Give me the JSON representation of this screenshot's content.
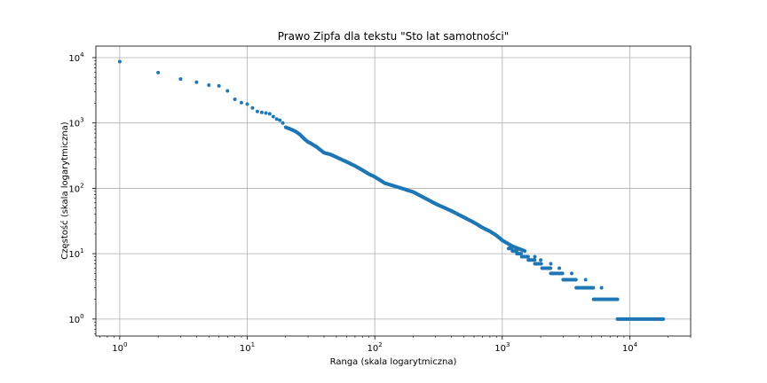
{
  "chart_data": {
    "type": "scatter",
    "title": "Prawo Zipfa dla tekstu \"Sto lat samotności\"",
    "xlabel": "Ranga (skala logarytmiczna)",
    "ylabel": "Częstość (skala logarytmicznа)",
    "xscale": "log",
    "yscale": "log",
    "xlim": [
      0.65,
      30000
    ],
    "ylim": [
      0.55,
      15000
    ],
    "grid": true,
    "marker_color": "#1f77b4",
    "x_ticks": [
      {
        "value": 1,
        "base": "10",
        "exp": "0"
      },
      {
        "value": 10,
        "base": "10",
        "exp": "1"
      },
      {
        "value": 100,
        "base": "10",
        "exp": "2"
      },
      {
        "value": 1000,
        "base": "10",
        "exp": "3"
      },
      {
        "value": 10000,
        "base": "10",
        "exp": "4"
      }
    ],
    "y_ticks": [
      {
        "value": 1,
        "base": "10",
        "exp": "0"
      },
      {
        "value": 10,
        "base": "10",
        "exp": "1"
      },
      {
        "value": 100,
        "base": "10",
        "exp": "2"
      },
      {
        "value": 1000,
        "base": "10",
        "exp": "3"
      },
      {
        "value": 10000,
        "base": "10",
        "exp": "4"
      }
    ],
    "points": [
      [
        1,
        8700
      ],
      [
        2,
        5900
      ],
      [
        3,
        4700
      ],
      [
        4,
        4200
      ],
      [
        5,
        3800
      ],
      [
        6,
        3700
      ],
      [
        7,
        3100
      ],
      [
        8,
        2300
      ],
      [
        9,
        2050
      ],
      [
        10,
        1950
      ],
      [
        11,
        1700
      ],
      [
        12,
        1500
      ],
      [
        13,
        1450
      ],
      [
        14,
        1420
      ],
      [
        15,
        1380
      ],
      [
        16,
        1250
      ],
      [
        17,
        1150
      ],
      [
        18,
        1100
      ],
      [
        19,
        1000
      ],
      [
        20,
        860
      ],
      [
        22,
        800
      ],
      [
        24,
        740
      ],
      [
        26,
        660
      ],
      [
        28,
        570
      ],
      [
        30,
        510
      ],
      [
        32,
        480
      ],
      [
        35,
        430
      ],
      [
        40,
        350
      ],
      [
        45,
        330
      ],
      [
        50,
        300
      ],
      [
        55,
        275
      ],
      [
        60,
        255
      ],
      [
        70,
        220
      ],
      [
        80,
        190
      ],
      [
        90,
        165
      ],
      [
        100,
        150
      ],
      [
        120,
        120
      ],
      [
        150,
        105
      ],
      [
        200,
        88
      ],
      [
        250,
        70
      ],
      [
        300,
        58
      ],
      [
        400,
        45
      ],
      [
        500,
        36
      ],
      [
        600,
        30
      ],
      [
        700,
        25
      ],
      [
        800,
        22
      ],
      [
        900,
        19
      ],
      [
        1000,
        16
      ],
      [
        1200,
        13
      ],
      [
        1500,
        11
      ],
      [
        1800,
        9
      ],
      [
        2000,
        8
      ],
      [
        2400,
        7
      ],
      [
        2800,
        6
      ],
      [
        3500,
        5
      ],
      [
        4500,
        4
      ],
      [
        6000,
        3
      ],
      [
        8000,
        2
      ],
      [
        18000,
        1
      ]
    ],
    "steps": [
      {
        "y": 1,
        "x_from": 8000,
        "x_to": 18500
      },
      {
        "y": 2,
        "x_from": 5200,
        "x_to": 8000
      },
      {
        "y": 3,
        "x_from": 3800,
        "x_to": 5200
      },
      {
        "y": 4,
        "x_from": 3000,
        "x_to": 3800
      },
      {
        "y": 5,
        "x_from": 2400,
        "x_to": 3000
      },
      {
        "y": 6,
        "x_from": 2050,
        "x_to": 2400
      },
      {
        "y": 7,
        "x_from": 1800,
        "x_to": 2050
      },
      {
        "y": 8,
        "x_from": 1600,
        "x_to": 1800
      },
      {
        "y": 9,
        "x_from": 1420,
        "x_to": 1600
      },
      {
        "y": 10,
        "x_from": 1300,
        "x_to": 1420
      },
      {
        "y": 11,
        "x_from": 1200,
        "x_to": 1300
      },
      {
        "y": 12,
        "x_from": 1120,
        "x_to": 1200
      }
    ]
  }
}
